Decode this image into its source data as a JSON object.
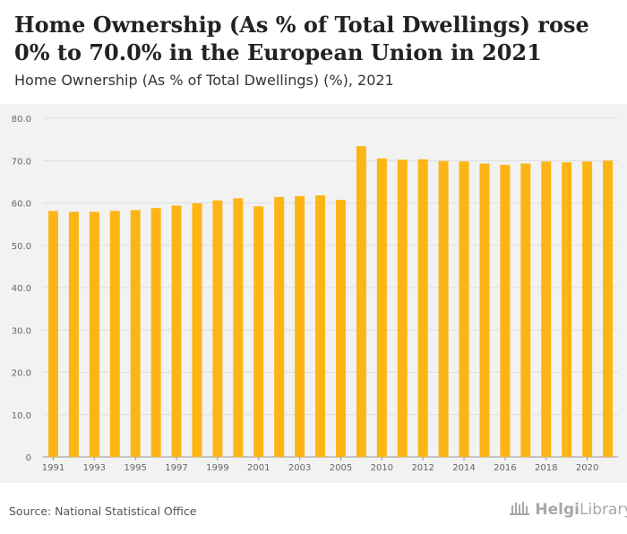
{
  "title": "Home Ownership (As % of Total Dwellings) rose 0% to 70.0% in the European Union in 2021",
  "subtitle": "Home Ownership (As % of Total Dwellings) (%), 2021",
  "source": "Source: National Statistical Office",
  "logo": {
    "part1": "Helgi",
    "part2": "Library"
  },
  "colors": {
    "bar": "#fdb515",
    "grid": "#dddddd",
    "background": "#f2f2f2",
    "axis_text": "#666666"
  },
  "chart_data": {
    "type": "bar",
    "categories": [
      "1991",
      "1992",
      "1993",
      "1994",
      "1995",
      "1996",
      "1997",
      "1998",
      "1999",
      "2000",
      "2001",
      "2002",
      "2003",
      "2004",
      "2005",
      "2006",
      "2010",
      "2011",
      "2012",
      "2013",
      "2014",
      "2015",
      "2016",
      "2017",
      "2018",
      "2019",
      "2020",
      "2021"
    ],
    "x_tick_labels": [
      "1991",
      "1993",
      "1995",
      "1997",
      "1999",
      "2001",
      "2003",
      "2005",
      "2010",
      "2012",
      "2014",
      "2016",
      "2018",
      "2020"
    ],
    "values": [
      58.1,
      57.9,
      57.9,
      58.1,
      58.3,
      58.8,
      59.4,
      59.9,
      60.6,
      61.1,
      59.2,
      61.4,
      61.6,
      61.8,
      60.7,
      73.4,
      70.5,
      70.2,
      70.3,
      69.9,
      69.8,
      69.3,
      69.0,
      69.3,
      69.8,
      69.6,
      69.8,
      70.0
    ],
    "y_ticks": [
      "0",
      "10.0",
      "20.0",
      "30.0",
      "40.0",
      "50.0",
      "60.0",
      "70.0",
      "80.0"
    ],
    "ylim": [
      0,
      80
    ],
    "xlabel": "",
    "ylabel": "",
    "grid": true
  }
}
